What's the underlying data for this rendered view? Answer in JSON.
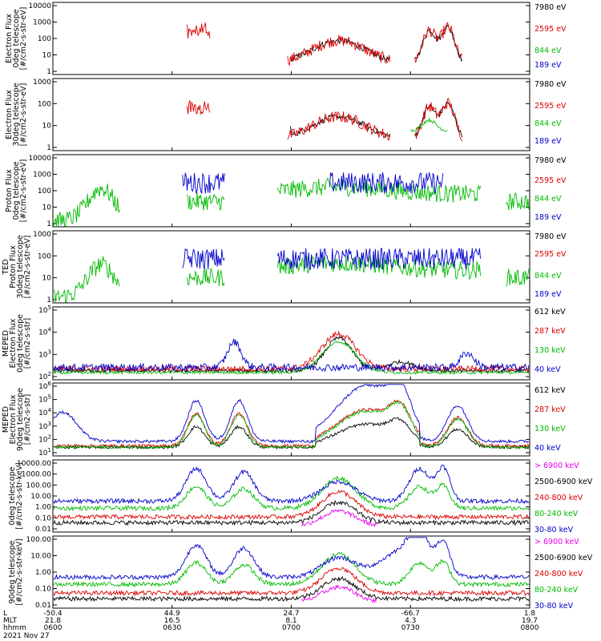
{
  "chart_data": {
    "type": "line",
    "date_label": "2021 Nov 27",
    "x_axis": {
      "row_labels": [
        "L",
        "MLT",
        "hhmm"
      ],
      "ticks": [
        {
          "L": "-50.4",
          "MLT": "21.8",
          "hhmm": "0600"
        },
        {
          "L": "44.9",
          "MLT": "16.5",
          "hhmm": "0630"
        },
        {
          "L": "24.7",
          "MLT": "8.1",
          "hhmm": "0700"
        },
        {
          "L": "-66.7",
          "MLT": "4.3",
          "hhmm": "0730"
        },
        {
          "L": "1.8",
          "MLT": "19.7",
          "hhmm": "0800"
        }
      ]
    },
    "panels": [
      {
        "ylabel": [
          "Electron Flux",
          "0deg telescope",
          "[#/cm2-s-str-eV]"
        ],
        "yticks": [
          "10000",
          "1000",
          "100",
          "10",
          "1"
        ],
        "series": [
          {
            "name": "7980 eV",
            "color": "#000000"
          },
          {
            "name": "2595 eV",
            "color": "#dd0000"
          },
          {
            "name": "844 eV",
            "color": "#00bb00"
          },
          {
            "name": "189 eV",
            "color": "#0000cc"
          }
        ]
      },
      {
        "ylabel": [
          "Electron Flux",
          "30deg telescope",
          "[#/cm2-s-str-eV]"
        ],
        "yticks": [
          "1000",
          "100",
          "10",
          "1"
        ],
        "series": [
          {
            "name": "7980 eV",
            "color": "#000000"
          },
          {
            "name": "2595 eV",
            "color": "#dd0000"
          },
          {
            "name": "844 eV",
            "color": "#00bb00"
          },
          {
            "name": "189 eV",
            "color": "#0000cc"
          }
        ]
      },
      {
        "ylabel": [
          "Proton Flux",
          "0deg telescope",
          "[#/cm2-s-str-eV]"
        ],
        "yticks": [
          "10000",
          "1000",
          "100",
          "10",
          "1"
        ],
        "series": [
          {
            "name": "7980 eV",
            "color": "#000000"
          },
          {
            "name": "2595 eV",
            "color": "#dd0000"
          },
          {
            "name": "844 eV",
            "color": "#00bb00"
          },
          {
            "name": "189 eV",
            "color": "#0000cc"
          }
        ]
      },
      {
        "ylabel": [
          "TED",
          "Proton Flux",
          "30deg telescope",
          "[#/cm2-s-str-eV]"
        ],
        "yticks": [
          "1000",
          "100",
          "10",
          "1"
        ],
        "series": [
          {
            "name": "7980 eV",
            "color": "#000000"
          },
          {
            "name": "2595 eV",
            "color": "#dd0000"
          },
          {
            "name": "844 eV",
            "color": "#00bb00"
          },
          {
            "name": "189 eV",
            "color": "#0000cc"
          }
        ]
      },
      {
        "ylabel": [
          "MEPED",
          "Electron Flux",
          "0deg telescope",
          "[#/cm2-s-str]"
        ],
        "yticks": [
          "10^5",
          "10^4",
          "10^3",
          "10^2"
        ],
        "series": [
          {
            "name": "612 keV",
            "color": "#000000"
          },
          {
            "name": "287 keV",
            "color": "#dd0000"
          },
          {
            "name": "130 keV",
            "color": "#00bb00"
          },
          {
            "name": "40 keV",
            "color": "#0000cc"
          }
        ]
      },
      {
        "ylabel": [
          "MEPED",
          "Electron Flux",
          "90deg telescope",
          "[#/cm2-s-str]"
        ],
        "yticks": [
          "10^6",
          "10^5",
          "10^4",
          "10^3",
          "10^2",
          "10^1"
        ],
        "series": [
          {
            "name": "612 keV",
            "color": "#000000"
          },
          {
            "name": "287 keV",
            "color": "#dd0000"
          },
          {
            "name": "130 keV",
            "color": "#00bb00"
          },
          {
            "name": "40 keV",
            "color": "#0000cc"
          }
        ]
      },
      {
        "ylabel": [
          "0deg telescope",
          "[#/cm2-s-str-keV]"
        ],
        "yticks": [
          "10000.00",
          "1000.00",
          "100.00",
          "10.00",
          "1.00",
          "0.10",
          "0.01"
        ],
        "series": [
          {
            "name": "> 6900 keV",
            "color": "#ee00ee"
          },
          {
            "name": "2500-6900 keV",
            "color": "#000000"
          },
          {
            "name": "240-800 keV",
            "color": "#dd0000"
          },
          {
            "name": "80-240 keV",
            "color": "#00bb00"
          },
          {
            "name": "30-80 keV",
            "color": "#0000cc"
          }
        ]
      },
      {
        "ylabel": [
          "90deg telescope",
          "[#/cm2-s-str-keV]"
        ],
        "yticks": [
          "100.00",
          "10.00",
          "1.00",
          "0.10",
          "0.01"
        ],
        "series": [
          {
            "name": "> 6900 keV",
            "color": "#ee00ee"
          },
          {
            "name": "2500-6900 keV",
            "color": "#000000"
          },
          {
            "name": "240-800 keV",
            "color": "#dd0000"
          },
          {
            "name": "80-240 keV",
            "color": "#00bb00"
          },
          {
            "name": "30-80 keV",
            "color": "#0000cc"
          }
        ]
      }
    ]
  }
}
